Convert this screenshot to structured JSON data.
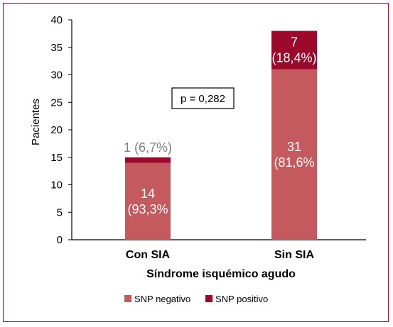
{
  "chart_data": {
    "type": "bar",
    "stacked": true,
    "categories": [
      "Con SIA",
      "Sin SIA"
    ],
    "series": [
      {
        "name": "SNP negativo",
        "color": "#c55a5e",
        "values": [
          14,
          31
        ],
        "labels": [
          [
            "14",
            "(93,3%"
          ],
          [
            "31",
            "(81,6%"
          ]
        ]
      },
      {
        "name": "SNP positivo",
        "color": "#9b0a2d",
        "values": [
          1,
          7
        ],
        "labels": [
          [
            "1 (6,7%)"
          ],
          [
            "7",
            "(18,4%)"
          ]
        ]
      }
    ],
    "xlabel": "Síndrome isquémico agudo",
    "ylabel": "Pacientes",
    "ylim": [
      0,
      40
    ],
    "yticks": [
      0,
      5,
      10,
      15,
      20,
      25,
      30,
      35,
      40
    ],
    "annotation": "p = 0,282",
    "legend_position": "bottom",
    "grid": false,
    "frame_color": "#9b1b35"
  }
}
